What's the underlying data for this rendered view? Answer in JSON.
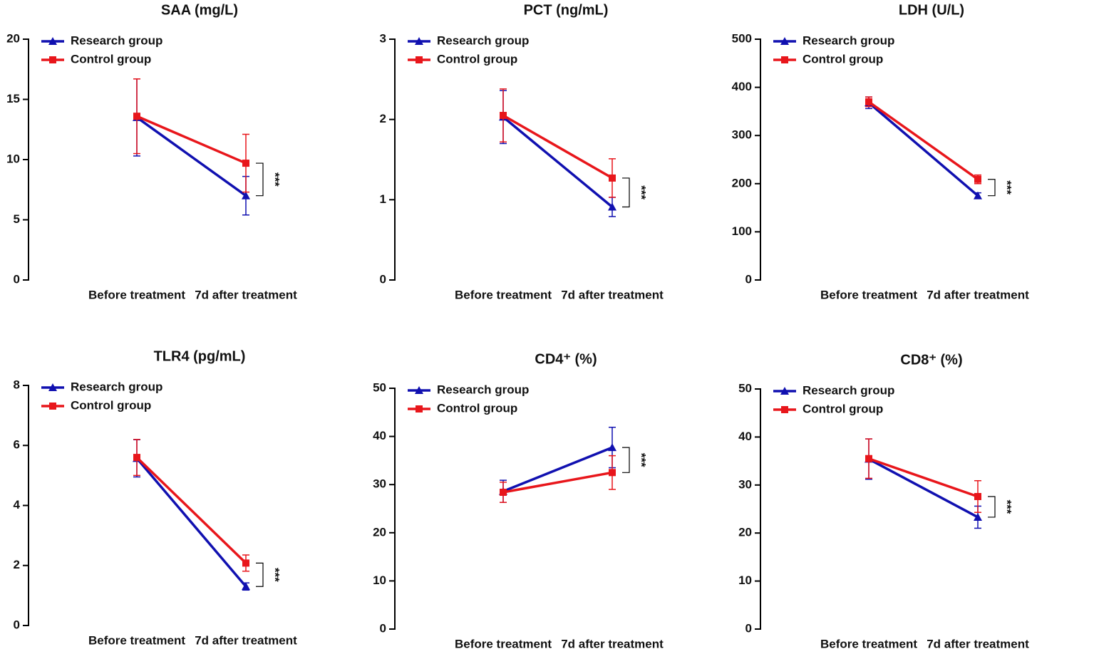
{
  "chart_data": [
    {
      "type": "line",
      "title": "SAA (mg/L)",
      "categories": [
        "Before treatment",
        "7d after treatment"
      ],
      "ylim": [
        0,
        20
      ],
      "yticks": [
        0,
        5,
        10,
        15,
        20
      ],
      "annotation": "***",
      "series": [
        {
          "name": "Research group",
          "color": "#1010b0",
          "values": [
            13.5,
            7.0
          ],
          "errors": [
            3.2,
            1.6
          ]
        },
        {
          "name": "Control group",
          "color": "#e8161b",
          "values": [
            13.6,
            9.7
          ],
          "errors": [
            3.1,
            2.4
          ]
        }
      ]
    },
    {
      "type": "line",
      "title": "PCT (ng/mL)",
      "categories": [
        "Before treatment",
        "7d after treatment"
      ],
      "ylim": [
        0,
        3
      ],
      "yticks": [
        0,
        1,
        2,
        3
      ],
      "annotation": "***",
      "series": [
        {
          "name": "Research group",
          "color": "#1010b0",
          "values": [
            2.03,
            0.91
          ],
          "errors": [
            0.33,
            0.12
          ]
        },
        {
          "name": "Control group",
          "color": "#e8161b",
          "values": [
            2.05,
            1.27
          ],
          "errors": [
            0.33,
            0.24
          ]
        }
      ]
    },
    {
      "type": "line",
      "title": "LDH (U/L)",
      "categories": [
        "Before treatment",
        "7d after treatment"
      ],
      "ylim": [
        0,
        500
      ],
      "yticks": [
        0,
        100,
        200,
        300,
        400,
        500
      ],
      "annotation": "***",
      "series": [
        {
          "name": "Research group",
          "color": "#1010b0",
          "values": [
            368,
            175
          ],
          "errors": [
            12,
            6
          ]
        },
        {
          "name": "Control group",
          "color": "#e8161b",
          "values": [
            370,
            209
          ],
          "errors": [
            10,
            9
          ]
        }
      ]
    },
    {
      "type": "line",
      "title": "TLR4 (pg/mL)",
      "categories": [
        "Before treatment",
        "7d after treatment"
      ],
      "ylim": [
        0,
        8
      ],
      "yticks": [
        0,
        2,
        4,
        6,
        8
      ],
      "annotation": "***",
      "series": [
        {
          "name": "Research group",
          "color": "#1010b0",
          "values": [
            5.57,
            1.3
          ],
          "errors": [
            0.62,
            0.12
          ]
        },
        {
          "name": "Control group",
          "color": "#e8161b",
          "values": [
            5.6,
            2.08
          ],
          "errors": [
            0.6,
            0.27
          ]
        }
      ]
    },
    {
      "type": "line",
      "title": "CD4⁺ (%)",
      "categories": [
        "Before treatment",
        "7d after treatment"
      ],
      "ylim": [
        0,
        50
      ],
      "yticks": [
        0,
        10,
        20,
        30,
        40,
        50
      ],
      "annotation": "***",
      "series": [
        {
          "name": "Research group",
          "color": "#1010b0",
          "values": [
            28.6,
            37.7
          ],
          "errors": [
            2.3,
            4.2
          ]
        },
        {
          "name": "Control group",
          "color": "#e8161b",
          "values": [
            28.4,
            32.5
          ],
          "errors": [
            2.1,
            3.5
          ]
        }
      ]
    },
    {
      "type": "line",
      "title": "CD8⁺ (%)",
      "categories": [
        "Before treatment",
        "7d after treatment"
      ],
      "ylim": [
        0,
        50
      ],
      "yticks": [
        0,
        10,
        20,
        30,
        40,
        50
      ],
      "annotation": "***",
      "series": [
        {
          "name": "Research group",
          "color": "#1010b0",
          "values": [
            35.4,
            23.3
          ],
          "errors": [
            4.2,
            2.3
          ]
        },
        {
          "name": "Control group",
          "color": "#e8161b",
          "values": [
            35.5,
            27.6
          ],
          "errors": [
            4.1,
            3.3
          ]
        }
      ]
    }
  ]
}
